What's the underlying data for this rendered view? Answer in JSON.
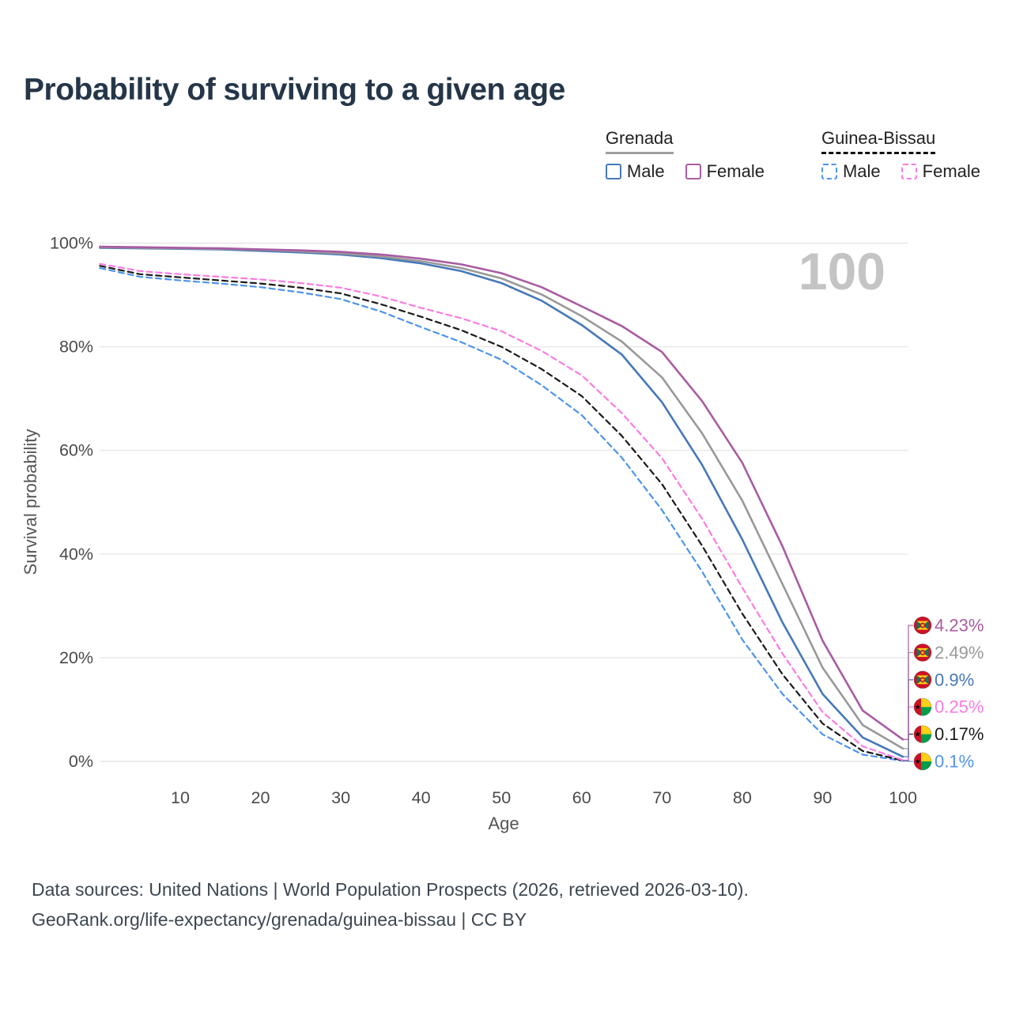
{
  "title": "Probability of surviving to a given age",
  "legend": {
    "groups": [
      {
        "title": "Grenada",
        "underline": {
          "style": "solid",
          "color": "#9e9e9e"
        },
        "items": [
          {
            "label": "Male",
            "color": "#4678b8",
            "dashed": false
          },
          {
            "label": "Female",
            "color": "#a85ca3",
            "dashed": false
          }
        ]
      },
      {
        "title": "Guinea-Bissau",
        "underline": {
          "style": "dashed",
          "color": "#111111"
        },
        "items": [
          {
            "label": "Male",
            "color": "#4d94ea",
            "dashed": true
          },
          {
            "label": "Female",
            "color": "#fb7ce1",
            "dashed": true
          }
        ]
      }
    ]
  },
  "chart_data": {
    "type": "line",
    "title": "Probability of surviving to a given age",
    "xlabel": "Age",
    "ylabel": "Survival probability",
    "xlim": [
      0,
      100
    ],
    "ylim": [
      0,
      100
    ],
    "grid": "horizontal-only",
    "legend_position": "top-right",
    "watermark": "100",
    "x_ticks": [
      10,
      20,
      30,
      40,
      50,
      60,
      70,
      80,
      90,
      100
    ],
    "y_ticks": [
      {
        "value": 0,
        "label": "0%"
      },
      {
        "value": 20,
        "label": "20%"
      },
      {
        "value": 40,
        "label": "40%"
      },
      {
        "value": 60,
        "label": "60%"
      },
      {
        "value": 80,
        "label": "80%"
      },
      {
        "value": 100,
        "label": "100%"
      }
    ],
    "ages": [
      0,
      5,
      10,
      15,
      20,
      25,
      30,
      35,
      40,
      45,
      50,
      55,
      60,
      65,
      70,
      75,
      80,
      85,
      90,
      95,
      100
    ],
    "series": [
      {
        "name": "Grenada — Female",
        "country": "Grenada",
        "sex": "Female",
        "flag": "grenada",
        "color": "#a85ca3",
        "line_style": "solid",
        "end_label": "4.23%",
        "end_value": 4.23,
        "values": [
          99.3,
          99.2,
          99.1,
          99.0,
          98.8,
          98.6,
          98.3,
          97.8,
          97.0,
          95.9,
          94.2,
          91.5,
          87.8,
          84.0,
          79.0,
          69.5,
          57.6,
          41.5,
          23.3,
          9.8,
          4.23
        ]
      },
      {
        "name": "Grenada — Both sexes",
        "country": "Grenada",
        "sex": "Both sexes",
        "flag": "grenada",
        "color": "#999999",
        "line_style": "solid",
        "end_label": "2.49%",
        "end_value": 2.49,
        "values": [
          99.2,
          99.1,
          99.0,
          98.9,
          98.7,
          98.4,
          98.0,
          97.4,
          96.5,
          95.2,
          93.2,
          90.1,
          85.9,
          81.0,
          74.1,
          63.3,
          50.3,
          34.2,
          18.1,
          7.0,
          2.49
        ]
      },
      {
        "name": "Grenada — Male",
        "country": "Grenada",
        "sex": "Male",
        "flag": "grenada",
        "color": "#4678b8",
        "line_style": "solid",
        "end_label": "0.9%",
        "end_value": 0.9,
        "values": [
          99.1,
          99.0,
          98.9,
          98.8,
          98.5,
          98.2,
          97.8,
          97.1,
          96.1,
          94.6,
          92.3,
          88.9,
          84.2,
          78.5,
          69.3,
          57.2,
          42.8,
          26.8,
          13.0,
          4.6,
          0.9
        ]
      },
      {
        "name": "Guinea-Bissau — Female",
        "country": "Guinea-Bissau",
        "sex": "Female",
        "flag": "guinea-bissau",
        "color": "#fb7ce1",
        "line_style": "dashed",
        "end_label": "0.25%",
        "end_value": 0.25,
        "values": [
          96.0,
          94.6,
          94.0,
          93.5,
          93.0,
          92.3,
          91.4,
          89.7,
          87.5,
          85.5,
          83.0,
          79.2,
          74.5,
          67.2,
          58.5,
          46.8,
          33.5,
          20.8,
          9.5,
          2.9,
          0.25
        ]
      },
      {
        "name": "Guinea-Bissau — Both sexes",
        "country": "Guinea-Bissau",
        "sex": "Both sexes",
        "flag": "guinea-bissau",
        "color": "#1a1a1a",
        "line_style": "dashed",
        "end_label": "0.17%",
        "end_value": 0.17,
        "values": [
          95.6,
          94.0,
          93.4,
          92.8,
          92.2,
          91.4,
          90.3,
          88.2,
          85.8,
          83.2,
          80.0,
          75.7,
          70.5,
          62.8,
          53.5,
          41.6,
          28.5,
          16.8,
          7.3,
          2.0,
          0.17
        ]
      },
      {
        "name": "Guinea-Bissau — Male",
        "country": "Guinea-Bissau",
        "sex": "Male",
        "flag": "guinea-bissau",
        "color": "#4d94ea",
        "line_style": "dashed",
        "end_label": "0.1%",
        "end_value": 0.1,
        "values": [
          95.2,
          93.5,
          92.8,
          92.2,
          91.5,
          90.5,
          89.2,
          86.8,
          83.8,
          80.9,
          77.5,
          72.6,
          66.8,
          58.6,
          48.5,
          36.6,
          23.5,
          13.0,
          5.2,
          1.3,
          0.1
        ]
      }
    ]
  },
  "footer": {
    "line1": "Data sources: United Nations | World Population Prospects (2026, retrieved 2026-03-10).",
    "line2": "GeoRank.org/life-expectancy/grenada/guinea-bissau | CC BY"
  }
}
